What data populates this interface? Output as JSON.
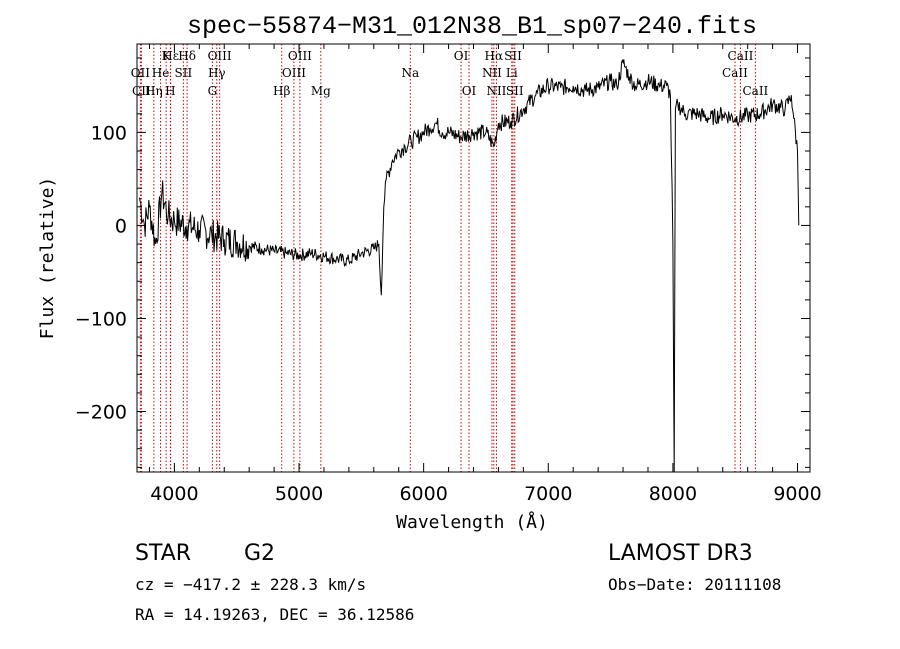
{
  "chart_data": {
    "type": "line",
    "title": "spec−55874−M31_012N38_B1_sp07−240.fits",
    "xlabel": "Wavelength (Å)",
    "ylabel": "Flux (relative)",
    "xlim": [
      3700,
      9100
    ],
    "ylim": [
      -265,
      195
    ],
    "x_ticks": [
      4000,
      5000,
      6000,
      7000,
      8000,
      9000
    ],
    "y_ticks": [
      -200,
      -100,
      0,
      100
    ],
    "x_tick_labels": [
      "4000",
      "5000",
      "6000",
      "7000",
      "8000",
      "9000"
    ],
    "y_tick_labels": [
      "−200",
      "−100",
      "0",
      "100"
    ],
    "grid": false,
    "line_color": "#000000",
    "marker_color": "#cc0000",
    "series": [
      {
        "x": [
          3720,
          3760,
          3800,
          3850,
          3900,
          3950,
          4000,
          4100,
          4200,
          4300,
          4400,
          4500,
          4600,
          4700,
          4800,
          4900,
          5000,
          5100,
          5200,
          5300,
          5400,
          5500,
          5600,
          5640,
          5660,
          5680,
          5700,
          5750,
          5800,
          5850,
          5900,
          5950,
          6000,
          6050,
          6100,
          6150,
          6200,
          6300,
          6400,
          6500,
          6563,
          6600,
          6700,
          6800,
          6900,
          7000,
          7100,
          7200,
          7300,
          7400,
          7500,
          7550,
          7600,
          7650,
          7700,
          7800,
          7900,
          7950,
          7980,
          8000,
          8010,
          8020,
          8040,
          8100,
          8200,
          8300,
          8400,
          8500,
          8600,
          8700,
          8800,
          8900,
          8950,
          8970,
          9000,
          9010
        ],
        "y": [
          30,
          0,
          20,
          -20,
          35,
          10,
          5,
          0,
          -5,
          -10,
          -15,
          -18,
          -22,
          -25,
          -28,
          -30,
          -32,
          -30,
          -33,
          -36,
          -38,
          -30,
          -25,
          -20,
          -75,
          20,
          50,
          70,
          80,
          85,
          90,
          95,
          100,
          105,
          110,
          100,
          100,
          95,
          100,
          100,
          85,
          110,
          112,
          125,
          140,
          150,
          148,
          150,
          145,
          148,
          155,
          150,
          175,
          160,
          150,
          155,
          150,
          150,
          140,
          -20,
          -265,
          125,
          130,
          120,
          120,
          115,
          120,
          115,
          118,
          120,
          130,
          125,
          140,
          115,
          80,
          0
        ]
      }
    ],
    "line_markers": [
      {
        "label": "Hε",
        "x": 3970,
        "tier": 0
      },
      {
        "label": "K",
        "x": 3934,
        "tier": 0
      },
      {
        "label": "Hδ",
        "x": 4102,
        "tier": 0
      },
      {
        "label": "OIII",
        "x": 4363,
        "tier": 0
      },
      {
        "label": "OIII",
        "x": 5007,
        "tier": 0
      },
      {
        "label": "OI",
        "x": 6300,
        "tier": 0
      },
      {
        "label": "Hα",
        "x": 6563,
        "tier": 0
      },
      {
        "label": "SII",
        "x": 6717,
        "tier": 0
      },
      {
        "label": "CaII",
        "x": 8542,
        "tier": 0
      },
      {
        "label": "OII",
        "x": 3727,
        "tier": 1
      },
      {
        "label": "He",
        "x": 3889,
        "tier": 1
      },
      {
        "label": "SII",
        "x": 4072,
        "tier": 1
      },
      {
        "label": "Hγ",
        "x": 4340,
        "tier": 1
      },
      {
        "label": "OIII",
        "x": 4959,
        "tier": 1
      },
      {
        "label": "Na",
        "x": 5893,
        "tier": 1
      },
      {
        "label": "NII",
        "x": 6548,
        "tier": 1
      },
      {
        "label": "Li",
        "x": 6707,
        "tier": 1
      },
      {
        "label": "CaII",
        "x": 8498,
        "tier": 1
      },
      {
        "label": "CII",
        "x": 3735,
        "tier": 2
      },
      {
        "label": "Hη",
        "x": 3835,
        "tier": 2
      },
      {
        "label": "H",
        "x": 3968,
        "tier": 2
      },
      {
        "label": "G",
        "x": 4305,
        "tier": 2
      },
      {
        "label": "Hβ",
        "x": 4861,
        "tier": 2
      },
      {
        "label": "Mg",
        "x": 5175,
        "tier": 2
      },
      {
        "label": "OI",
        "x": 6364,
        "tier": 2
      },
      {
        "label": "NII",
        "x": 6584,
        "tier": 2
      },
      {
        "label": "SII",
        "x": 6731,
        "tier": 2
      },
      {
        "label": "CaII",
        "x": 8662,
        "tier": 2
      }
    ]
  },
  "footer": {
    "class_label": "STAR",
    "subclass_label": "G2",
    "survey_label": "LAMOST DR3",
    "redshift_text": "cz = −417.2 ± 228.3 km/s",
    "obs_date_text": "Obs−Date: 20111108",
    "coords_text": "RA =  14.19263, DEC =  36.12586"
  }
}
